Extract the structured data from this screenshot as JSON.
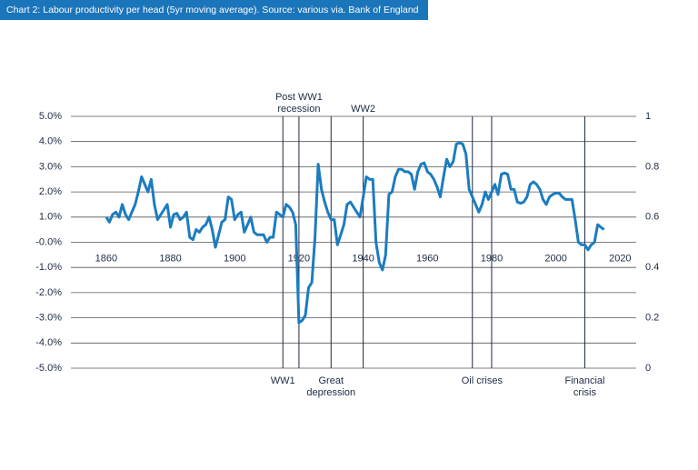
{
  "chart_data": {
    "type": "line",
    "title": "Chart 2: Labour productivity per head (5yr moving average). Source: various via. Bank of England",
    "x": [
      1860,
      1861,
      1862,
      1863,
      1864,
      1865,
      1866,
      1867,
      1868,
      1869,
      1870,
      1871,
      1872,
      1873,
      1874,
      1875,
      1876,
      1877,
      1878,
      1879,
      1880,
      1881,
      1882,
      1883,
      1884,
      1885,
      1886,
      1887,
      1888,
      1889,
      1890,
      1891,
      1892,
      1893,
      1894,
      1895,
      1896,
      1897,
      1898,
      1899,
      1900,
      1901,
      1902,
      1903,
      1904,
      1905,
      1906,
      1907,
      1908,
      1909,
      1910,
      1911,
      1912,
      1913,
      1914,
      1915,
      1916,
      1917,
      1918,
      1919,
      1920,
      1921,
      1922,
      1923,
      1924,
      1925,
      1926,
      1927,
      1928,
      1929,
      1930,
      1931,
      1932,
      1933,
      1934,
      1935,
      1936,
      1937,
      1938,
      1939,
      1940,
      1941,
      1942,
      1943,
      1944,
      1945,
      1946,
      1947,
      1948,
      1949,
      1950,
      1951,
      1952,
      1953,
      1954,
      1955,
      1956,
      1957,
      1958,
      1959,
      1960,
      1961,
      1962,
      1963,
      1964,
      1965,
      1966,
      1967,
      1968,
      1969,
      1970,
      1971,
      1972,
      1973,
      1974,
      1975,
      1976,
      1977,
      1978,
      1979,
      1980,
      1981,
      1982,
      1983,
      1984,
      1985,
      1986,
      1987,
      1988,
      1989,
      1990,
      1991,
      1992,
      1993,
      1994,
      1995,
      1996,
      1997,
      1998,
      1999,
      2000,
      2001,
      2002,
      2003,
      2004,
      2005,
      2006,
      2007,
      2008,
      2009,
      2010,
      2011,
      2012,
      2013,
      2014,
      2015
    ],
    "series": [
      {
        "name": "Labour productivity per head",
        "color": "#1b7cc0",
        "values": [
          1.0,
          0.8,
          1.1,
          1.2,
          1.0,
          1.5,
          1.1,
          0.9,
          1.2,
          1.5,
          2.0,
          2.6,
          2.3,
          2.0,
          2.5,
          1.5,
          0.9,
          1.1,
          1.3,
          1.5,
          0.6,
          1.1,
          1.15,
          0.9,
          1.0,
          1.2,
          0.2,
          0.1,
          0.5,
          0.4,
          0.6,
          0.7,
          1.0,
          0.5,
          -0.2,
          0.3,
          0.8,
          0.9,
          1.8,
          1.7,
          0.9,
          1.1,
          1.2,
          0.4,
          0.7,
          1.0,
          0.4,
          0.3,
          0.3,
          0.3,
          0.0,
          0.2,
          0.2,
          1.2,
          1.1,
          1.0,
          1.5,
          1.4,
          1.2,
          0.7,
          -3.2,
          -3.1,
          -2.9,
          -1.8,
          -1.6,
          0.2,
          3.1,
          2.1,
          1.6,
          1.2,
          0.9,
          0.9,
          -0.1,
          0.3,
          0.7,
          1.5,
          1.6,
          1.4,
          1.2,
          1.0,
          1.8,
          2.6,
          2.5,
          2.5,
          0.0,
          -0.8,
          -1.1,
          -0.5,
          1.9,
          2.0,
          2.6,
          2.9,
          2.9,
          2.8,
          2.8,
          2.7,
          2.1,
          2.8,
          3.1,
          3.15,
          2.8,
          2.7,
          2.5,
          2.2,
          1.8,
          2.6,
          3.3,
          3.0,
          3.2,
          3.9,
          3.95,
          3.9,
          3.5,
          2.1,
          1.8,
          1.5,
          1.2,
          1.5,
          2.0,
          1.7,
          2.0,
          2.3,
          1.9,
          2.7,
          2.75,
          2.7,
          2.1,
          2.1,
          1.6,
          1.55,
          1.6,
          1.8,
          2.3,
          2.4,
          2.3,
          2.1,
          1.7,
          1.5,
          1.8,
          1.9,
          1.95,
          1.95,
          1.8,
          1.7,
          1.7,
          1.7,
          0.9,
          0.0,
          -0.1,
          -0.1,
          -0.3,
          -0.1,
          0.0,
          0.7,
          0.6,
          0.5
        ]
      }
    ],
    "xlim": [
      1849,
      2025
    ],
    "xticks": [
      1860,
      1880,
      1900,
      1920,
      1940,
      1960,
      1980,
      2000,
      2020
    ],
    "ylim": [
      -5,
      5
    ],
    "yticks": [
      {
        "value": -5,
        "label": "-5.0%"
      },
      {
        "value": -4,
        "label": "-4.0%"
      },
      {
        "value": -3,
        "label": "-3.0%"
      },
      {
        "value": -2,
        "label": "-2.0%"
      },
      {
        "value": -1,
        "label": "-1.0%"
      },
      {
        "value": 0,
        "label": "-0.0%"
      },
      {
        "value": 1,
        "label": "1.0%"
      },
      {
        "value": 2,
        "label": "2.0%"
      },
      {
        "value": 3,
        "label": "3.0%"
      },
      {
        "value": 4,
        "label": "4.0%"
      },
      {
        "value": 5,
        "label": "5.0%"
      }
    ],
    "y2lim": [
      0,
      1
    ],
    "y2ticks": [
      0,
      0.2,
      0.4,
      0.6,
      0.8,
      1
    ],
    "grid": true,
    "annotations": [
      {
        "text": [
          "WW1"
        ],
        "years": [
          1915
        ],
        "position": "bottom"
      },
      {
        "text": [
          "Post WW1",
          "recession"
        ],
        "years": [
          1920
        ],
        "position": "top"
      },
      {
        "text": [
          "Great",
          "depression"
        ],
        "years": [
          1930
        ],
        "position": "bottom"
      },
      {
        "text": [
          "WW2"
        ],
        "years": [
          1940
        ],
        "position": "top"
      },
      {
        "text": [
          "Oil crises"
        ],
        "years": [
          1974,
          1980
        ],
        "position": "bottom"
      },
      {
        "text": [
          "Financial",
          "crisis"
        ],
        "years": [
          2009
        ],
        "position": "bottom"
      }
    ]
  }
}
